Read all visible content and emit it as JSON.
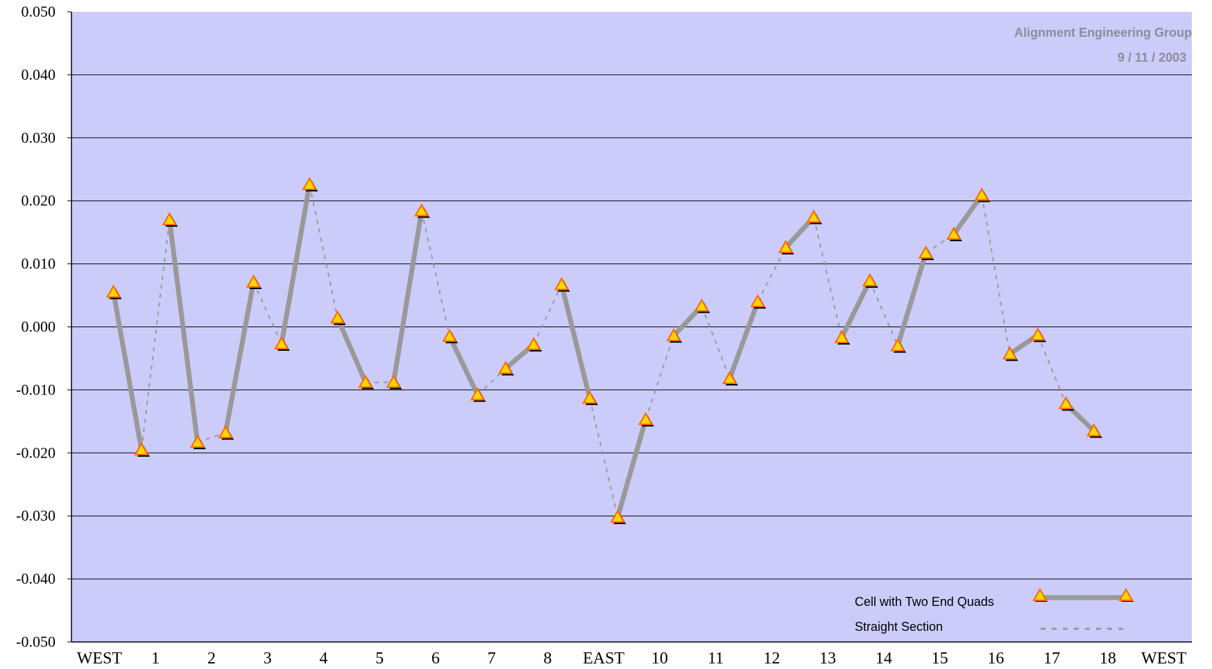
{
  "chart_data": {
    "type": "line",
    "annotation": {
      "line1": "Alignment Engineering Group",
      "line2": "9 / 11 / 2003"
    },
    "ylim": [
      -0.05,
      0.05
    ],
    "yticks": [
      "0.050",
      "0.040",
      "0.030",
      "0.020",
      "0.010",
      "0.000",
      "-0.010",
      "-0.020",
      "-0.030",
      "-0.040",
      "-0.050"
    ],
    "xlim": [
      0,
      20
    ],
    "xticks": [
      {
        "x": 0,
        "label": "WEST"
      },
      {
        "x": 1,
        "label": "1"
      },
      {
        "x": 2,
        "label": "2"
      },
      {
        "x": 3,
        "label": "3"
      },
      {
        "x": 4,
        "label": "4"
      },
      {
        "x": 5,
        "label": "5"
      },
      {
        "x": 6,
        "label": "6"
      },
      {
        "x": 7,
        "label": "7"
      },
      {
        "x": 8,
        "label": "8"
      },
      {
        "x": 9,
        "label": "EAST"
      },
      {
        "x": 10,
        "label": "10"
      },
      {
        "x": 11,
        "label": "11"
      },
      {
        "x": 12,
        "label": "12"
      },
      {
        "x": 13,
        "label": "13"
      },
      {
        "x": 14,
        "label": "14"
      },
      {
        "x": 15,
        "label": "15"
      },
      {
        "x": 16,
        "label": "16"
      },
      {
        "x": 17,
        "label": "17"
      },
      {
        "x": 18,
        "label": "18"
      },
      {
        "x": 19,
        "label": "WEST"
      }
    ],
    "points": [
      {
        "x": 0.75,
        "y": 0.0055
      },
      {
        "x": 1.25,
        "y": -0.0195
      },
      {
        "x": 1.75,
        "y": 0.017
      },
      {
        "x": 2.25,
        "y": -0.0183
      },
      {
        "x": 2.75,
        "y": -0.0168
      },
      {
        "x": 3.25,
        "y": 0.0071
      },
      {
        "x": 3.75,
        "y": -0.0027
      },
      {
        "x": 4.25,
        "y": 0.0226
      },
      {
        "x": 4.75,
        "y": 0.0014
      },
      {
        "x": 5.25,
        "y": -0.0088
      },
      {
        "x": 5.75,
        "y": -0.0088
      },
      {
        "x": 6.25,
        "y": 0.0184
      },
      {
        "x": 6.75,
        "y": -0.0015
      },
      {
        "x": 7.25,
        "y": -0.0108
      },
      {
        "x": 7.75,
        "y": -0.0066
      },
      {
        "x": 8.25,
        "y": -0.0028
      },
      {
        "x": 8.75,
        "y": 0.0067
      },
      {
        "x": 9.25,
        "y": -0.0113
      },
      {
        "x": 9.75,
        "y": -0.0302
      },
      {
        "x": 10.25,
        "y": -0.0147
      },
      {
        "x": 10.75,
        "y": -0.0014
      },
      {
        "x": 11.25,
        "y": 0.0033
      },
      {
        "x": 11.75,
        "y": -0.0082
      },
      {
        "x": 12.25,
        "y": 0.004
      },
      {
        "x": 12.75,
        "y": 0.0126
      },
      {
        "x": 13.25,
        "y": 0.0174
      },
      {
        "x": 13.75,
        "y": -0.0017
      },
      {
        "x": 14.25,
        "y": 0.0073
      },
      {
        "x": 14.75,
        "y": -0.003
      },
      {
        "x": 15.25,
        "y": 0.0117
      },
      {
        "x": 15.75,
        "y": 0.0147
      },
      {
        "x": 16.25,
        "y": 0.0209
      },
      {
        "x": 16.75,
        "y": -0.0043
      },
      {
        "x": 17.25,
        "y": -0.0013
      },
      {
        "x": 17.75,
        "y": -0.0122
      },
      {
        "x": 18.25,
        "y": -0.0165
      }
    ],
    "series": [
      {
        "name": "Cell with Two End Quads",
        "style": "solid",
        "segments": [
          [
            0,
            1
          ],
          [
            2,
            3
          ],
          [
            4,
            5
          ],
          [
            6,
            7
          ],
          [
            8,
            9
          ],
          [
            10,
            11
          ],
          [
            12,
            13
          ],
          [
            14,
            15
          ],
          [
            16,
            17
          ],
          [
            18,
            19
          ],
          [
            20,
            21
          ],
          [
            22,
            23
          ],
          [
            24,
            25
          ],
          [
            26,
            27
          ],
          [
            28,
            29
          ],
          [
            30,
            31
          ],
          [
            32,
            33
          ],
          [
            34,
            35
          ]
        ]
      },
      {
        "name": "Straight Section",
        "style": "dashed",
        "segments": [
          [
            1,
            2
          ],
          [
            3,
            4
          ],
          [
            5,
            6
          ],
          [
            7,
            8
          ],
          [
            9,
            10
          ],
          [
            11,
            12
          ],
          [
            13,
            14
          ],
          [
            15,
            16
          ],
          [
            17,
            18
          ],
          [
            19,
            20
          ],
          [
            21,
            22
          ],
          [
            23,
            24
          ],
          [
            25,
            26
          ],
          [
            27,
            28
          ],
          [
            29,
            30
          ],
          [
            31,
            32
          ],
          [
            33,
            34
          ]
        ]
      }
    ],
    "grid": true,
    "legend": "bottom-right",
    "colors": {
      "plot_background": "#ccccfa",
      "grid": "#000000",
      "solid_line": "#999999",
      "dashed_line": "#999999",
      "marker_fill": "#ffd700",
      "marker_stroke": "#ff6600",
      "marker_shadow": "#000000"
    }
  }
}
